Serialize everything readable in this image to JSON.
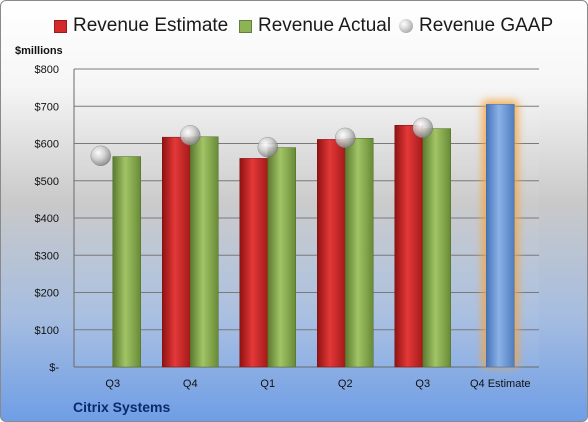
{
  "legend": {
    "estimate": "Revenue Estimate",
    "actual": "Revenue Actual",
    "gaap": "Revenue GAAP"
  },
  "unit_label": "$millions",
  "company": "Citrix Systems",
  "colors": {
    "estimate": "#d62a2a",
    "actual": "#8db356",
    "gaap": "#b4b4b4",
    "q4_estimate": "#6a9ad6",
    "q4_glow": "#f5a640"
  },
  "chart_data": {
    "type": "bar",
    "categories": [
      "Q3",
      "Q4",
      "Q1",
      "Q2",
      "Q3",
      "Q4 Estimate"
    ],
    "y_tick_labels": [
      "$-",
      "$100",
      "$200",
      "$300",
      "$400",
      "$500",
      "$600",
      "$700",
      "$800"
    ],
    "ylim": [
      0,
      800
    ],
    "grid": true,
    "legend_position": "top",
    "series": [
      {
        "name": "Revenue Estimate",
        "values": [
          null,
          617,
          560,
          611,
          649,
          705
        ]
      },
      {
        "name": "Revenue Actual",
        "values": [
          565,
          618,
          589,
          614,
          640,
          null
        ]
      },
      {
        "name": "Revenue GAAP",
        "values": [
          567,
          622,
          590,
          615,
          642,
          null
        ]
      }
    ]
  }
}
